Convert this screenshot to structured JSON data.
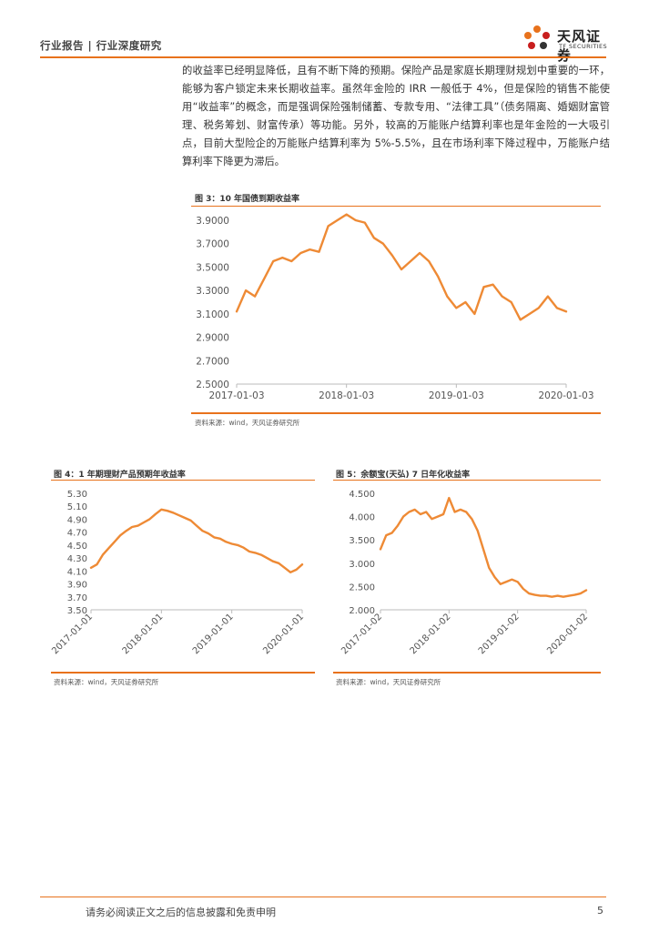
{
  "header": {
    "section": "行业报告 | 行业深度研究",
    "logo_cn": "天风证券",
    "logo_en": "TF SECURITIES"
  },
  "paragraph": "的收益率已经明显降低，且有不断下降的预期。保险产品是家庭长期理财规划中重要的一环，能够为客户锁定未来长期收益率。虽然年金险的 IRR 一般低于 4%，但是保险的销售不能使用“收益率”的概念，而是强调保险强制储蓄、专款专用、“法律工具”（债务隔离、婚姻财富管理、税务筹划、财富传承）等功能。另外，较高的万能账户结算利率也是年金险的一大吸引点，目前大型险企的万能账户结算利率为 5%-5.5%，且在市场利率下降过程中，万能账户结算利率下降更为滞后。",
  "figures": {
    "fig3": {
      "title": "图 3：10 年国债到期收益率",
      "source": "资料来源：wind，天风证券研究所"
    },
    "fig4": {
      "title": "图 4：1 年期理财产品预期年收益率",
      "source": "资料来源：wind，天风证券研究所"
    },
    "fig5": {
      "title": "图 5：余额宝(天弘) 7 日年化收益率",
      "source": "资料来源：wind，天风证券研究所"
    }
  },
  "footer": {
    "disclaimer": "请务必阅读正文之后的信息披露和免责申明",
    "page": "5"
  },
  "colors": {
    "accent": "#e8721c",
    "line": "#ee8a35"
  },
  "chart_data": [
    {
      "id": "fig3",
      "type": "line",
      "x_ticks": [
        "2017-01-03",
        "2018-01-03",
        "2019-01-03",
        "2020-01-03"
      ],
      "y_ticks": [
        "3.9000",
        "3.7000",
        "3.5000",
        "3.3000",
        "3.1000",
        "2.9000",
        "2.7000",
        "2.5000"
      ],
      "ylim": [
        2.5,
        3.9
      ],
      "grid": false,
      "series": [
        {
          "x": [
            "2017-01",
            "2017-02",
            "2017-03",
            "2017-04",
            "2017-05",
            "2017-06",
            "2017-07",
            "2017-08",
            "2017-09",
            "2017-10",
            "2017-11",
            "2017-12",
            "2018-01",
            "2018-02",
            "2018-03",
            "2018-04",
            "2018-05",
            "2018-06",
            "2018-07",
            "2018-08",
            "2018-09",
            "2018-10",
            "2018-11",
            "2018-12",
            "2019-01",
            "2019-02",
            "2019-03",
            "2019-04",
            "2019-05",
            "2019-06",
            "2019-07",
            "2019-08",
            "2019-09",
            "2019-10",
            "2019-11",
            "2019-12",
            "2020-01"
          ],
          "values": [
            3.12,
            3.3,
            3.25,
            3.4,
            3.55,
            3.58,
            3.55,
            3.62,
            3.65,
            3.63,
            3.85,
            3.9,
            3.95,
            3.9,
            3.88,
            3.75,
            3.7,
            3.6,
            3.48,
            3.55,
            3.62,
            3.55,
            3.42,
            3.25,
            3.15,
            3.2,
            3.1,
            3.33,
            3.35,
            3.25,
            3.2,
            3.05,
            3.1,
            3.15,
            3.25,
            3.15,
            3.12
          ]
        }
      ]
    },
    {
      "id": "fig4",
      "type": "line",
      "x_ticks": [
        "2017-01-01",
        "2018-01-01",
        "2019-01-01",
        "2020-01-01"
      ],
      "y_ticks": [
        "5.30",
        "5.10",
        "4.90",
        "4.70",
        "4.50",
        "4.30",
        "4.10",
        "3.90",
        "3.70",
        "3.50"
      ],
      "ylim": [
        3.5,
        5.3
      ],
      "grid": false,
      "series": [
        {
          "x": [
            "2017-01",
            "2017-02",
            "2017-03",
            "2017-04",
            "2017-05",
            "2017-06",
            "2017-07",
            "2017-08",
            "2017-09",
            "2017-10",
            "2017-11",
            "2017-12",
            "2018-01",
            "2018-02",
            "2018-03",
            "2018-04",
            "2018-05",
            "2018-06",
            "2018-07",
            "2018-08",
            "2018-09",
            "2018-10",
            "2018-11",
            "2018-12",
            "2019-01",
            "2019-02",
            "2019-03",
            "2019-04",
            "2019-05",
            "2019-06",
            "2019-07",
            "2019-08",
            "2019-09",
            "2019-10",
            "2019-11",
            "2019-12",
            "2020-01"
          ],
          "values": [
            4.15,
            4.2,
            4.35,
            4.45,
            4.55,
            4.65,
            4.72,
            4.78,
            4.8,
            4.85,
            4.9,
            4.98,
            5.05,
            5.03,
            5.0,
            4.96,
            4.92,
            4.88,
            4.8,
            4.72,
            4.68,
            4.62,
            4.6,
            4.55,
            4.52,
            4.5,
            4.46,
            4.4,
            4.38,
            4.35,
            4.3,
            4.25,
            4.22,
            4.15,
            4.08,
            4.12,
            4.2
          ]
        }
      ]
    },
    {
      "id": "fig5",
      "type": "line",
      "x_ticks": [
        "2017-01-02",
        "2018-01-02",
        "2019-01-02",
        "2020-01-02"
      ],
      "y_ticks": [
        "4.500",
        "4.000",
        "3.500",
        "3.000",
        "2.500",
        "2.000"
      ],
      "ylim": [
        2.0,
        4.5
      ],
      "grid": false,
      "series": [
        {
          "x": [
            "2017-01",
            "2017-02",
            "2017-03",
            "2017-04",
            "2017-05",
            "2017-06",
            "2017-07",
            "2017-08",
            "2017-09",
            "2017-10",
            "2017-11",
            "2017-12",
            "2018-01",
            "2018-02",
            "2018-03",
            "2018-04",
            "2018-05",
            "2018-06",
            "2018-07",
            "2018-08",
            "2018-09",
            "2018-10",
            "2018-11",
            "2018-12",
            "2019-01",
            "2019-02",
            "2019-03",
            "2019-04",
            "2019-05",
            "2019-06",
            "2019-07",
            "2019-08",
            "2019-09",
            "2019-10",
            "2019-11",
            "2019-12",
            "2020-01"
          ],
          "values": [
            3.3,
            3.6,
            3.65,
            3.8,
            4.0,
            4.1,
            4.15,
            4.05,
            4.1,
            3.95,
            4.0,
            4.05,
            4.4,
            4.1,
            4.15,
            4.1,
            3.95,
            3.7,
            3.3,
            2.9,
            2.7,
            2.55,
            2.6,
            2.65,
            2.6,
            2.45,
            2.35,
            2.32,
            2.3,
            2.3,
            2.28,
            2.3,
            2.28,
            2.3,
            2.32,
            2.35,
            2.42
          ]
        }
      ]
    }
  ]
}
